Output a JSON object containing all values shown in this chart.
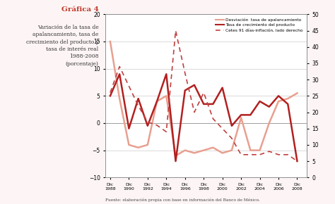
{
  "title": "Gráfica 4",
  "subtitle_lines": [
    "Variación de la tasa de",
    "apalancamiento, tasa de",
    "crecimiento del producto y",
    "tasa de interés real",
    "1988-2008",
    "(porcentaje)"
  ],
  "source": "Fuente: elaboración propia con base en información del Banco de México.",
  "x_labels": [
    "Dic-1988",
    "Dic-1990",
    "Dic-1992",
    "Dic-1994",
    "Dic-1996",
    "Dic-1998",
    "Dic-2000",
    "Dic-2002",
    "Dic-2004",
    "Dic-2006",
    "Dic-2008"
  ],
  "x_values": [
    1988,
    1989,
    1990,
    1991,
    1992,
    1993,
    1994,
    1995,
    1996,
    1997,
    1998,
    1999,
    2000,
    2001,
    2002,
    2003,
    2004,
    2005,
    2006,
    2007,
    2008
  ],
  "desviacion": [
    15,
    4.5,
    -4,
    -4.5,
    -4,
    4,
    5,
    -6,
    -5,
    -5.5,
    -5,
    -4.5,
    -5.5,
    -5,
    1,
    -5,
    -5,
    0,
    4,
    4.5,
    5.5
  ],
  "tasa_crecimiento": [
    5,
    9,
    -1,
    4.5,
    -0.5,
    4,
    9,
    -7,
    6,
    7,
    3.5,
    3.5,
    6.5,
    -0.5,
    1.5,
    1.5,
    4,
    3,
    5,
    3.5,
    -7
  ],
  "cetes": [
    26,
    34,
    28,
    22,
    17,
    16,
    14,
    45,
    32,
    20,
    26,
    18,
    15,
    12,
    7,
    7,
    7,
    8,
    7,
    7,
    5
  ],
  "ylim_left": [
    -10,
    20
  ],
  "ylim_right": [
    0,
    50
  ],
  "yticks_left": [
    -10,
    -5,
    0,
    5,
    10,
    15,
    20
  ],
  "yticks_right": [
    0,
    5,
    10,
    15,
    20,
    25,
    30,
    35,
    40,
    45,
    50
  ],
  "color_desviacion": "#e8a090",
  "color_tasa": "#b22020",
  "color_cetes": "#c04040",
  "legend_labels": [
    "Desviación  tasa de apalancamiento",
    "Tasa de crecimiento del producto",
    "Cetes 91 días-inflación, lado derecho"
  ],
  "background_color": "#fdf5f5",
  "title_color": "#c0392b",
  "grid_color": "#cccccc"
}
